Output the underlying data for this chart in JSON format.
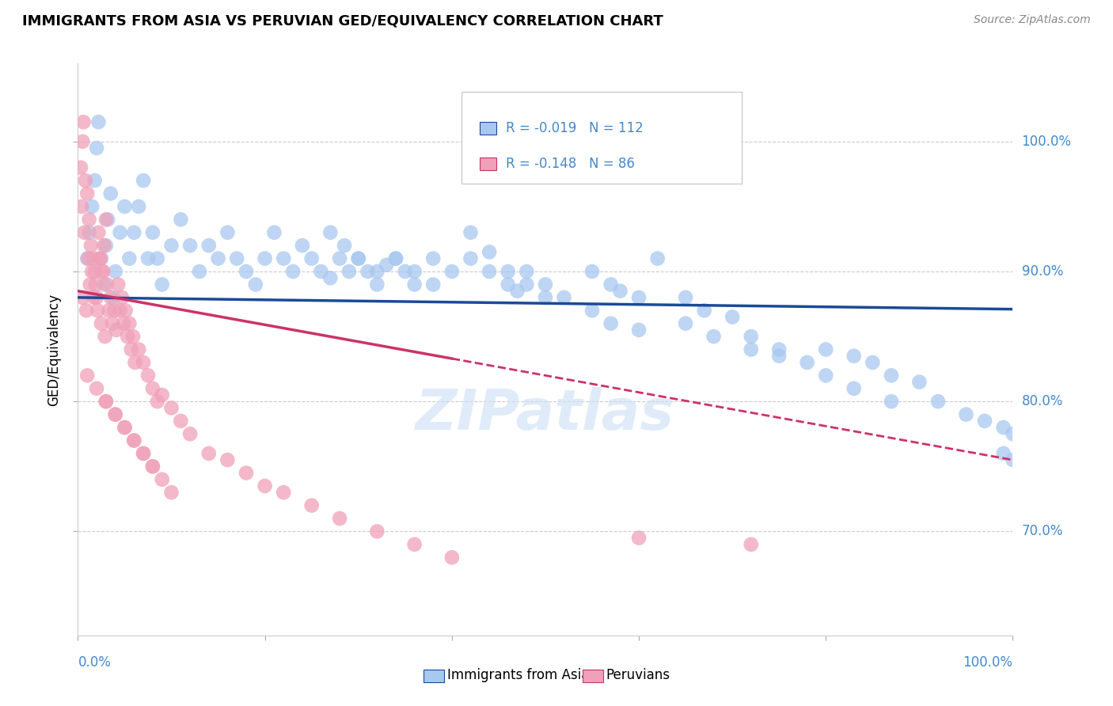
{
  "title": "IMMIGRANTS FROM ASIA VS PERUVIAN GED/EQUIVALENCY CORRELATION CHART",
  "source": "Source: ZipAtlas.com",
  "ylabel": "GED/Equivalency",
  "ylabel_ticks": [
    70.0,
    80.0,
    90.0,
    100.0
  ],
  "xlim": [
    0.0,
    100.0
  ],
  "ylim": [
    62.0,
    106.0
  ],
  "legend_label_blue": "Immigrants from Asia",
  "legend_label_pink": "Peruvians",
  "R_blue": -0.019,
  "N_blue": 112,
  "R_pink": -0.148,
  "N_pink": 86,
  "color_blue": "#a8c8f0",
  "color_pink": "#f0a0b8",
  "color_blue_line": "#1a4a99",
  "color_pink_line": "#cc3366",
  "color_text": "#4488cc",
  "watermark": "ZIPatlas",
  "blue_trend_x0": 0.0,
  "blue_trend_y0": 88.0,
  "blue_trend_x1": 100.0,
  "blue_trend_y1": 87.1,
  "pink_trend_x0": 0.0,
  "pink_trend_y0": 88.5,
  "pink_trend_x1": 100.0,
  "pink_trend_y1": 75.5,
  "pink_solid_max_x": 40.0,
  "blue_x": [
    1.0,
    1.2,
    1.5,
    1.8,
    2.0,
    2.2,
    2.5,
    2.8,
    3.0,
    3.2,
    3.5,
    3.8,
    4.0,
    4.5,
    5.0,
    5.5,
    6.0,
    6.5,
    7.0,
    7.5,
    8.0,
    8.5,
    9.0,
    10.0,
    11.0,
    12.0,
    13.0,
    14.0,
    15.0,
    16.0,
    17.0,
    18.0,
    19.0,
    20.0,
    21.0,
    22.0,
    23.0,
    24.0,
    25.0,
    26.0,
    27.0,
    28.0,
    29.0,
    30.0,
    31.0,
    32.0,
    33.0,
    34.0,
    35.0,
    36.0,
    38.0,
    40.0,
    27.0,
    28.5,
    30.0,
    32.0,
    34.0,
    36.0,
    38.0,
    42.0,
    44.0,
    46.0,
    47.0,
    48.0,
    50.0,
    52.0,
    42.0,
    44.0,
    46.0,
    48.0,
    50.0,
    55.0,
    57.0,
    58.0,
    60.0,
    62.0,
    55.0,
    57.0,
    60.0,
    65.0,
    67.0,
    70.0,
    72.0,
    75.0,
    78.0,
    65.0,
    68.0,
    72.0,
    75.0,
    80.0,
    83.0,
    85.0,
    87.0,
    90.0,
    80.0,
    83.0,
    87.0,
    92.0,
    95.0,
    97.0,
    99.0,
    100.0,
    99.0,
    100.0
  ],
  "blue_y": [
    91.0,
    93.0,
    95.0,
    97.0,
    99.5,
    101.5,
    91.0,
    89.0,
    92.0,
    94.0,
    96.0,
    88.0,
    90.0,
    93.0,
    95.0,
    91.0,
    93.0,
    95.0,
    97.0,
    91.0,
    93.0,
    91.0,
    89.0,
    92.0,
    94.0,
    92.0,
    90.0,
    92.0,
    91.0,
    93.0,
    91.0,
    90.0,
    89.0,
    91.0,
    93.0,
    91.0,
    90.0,
    92.0,
    91.0,
    90.0,
    89.5,
    91.0,
    90.0,
    91.0,
    90.0,
    89.0,
    90.5,
    91.0,
    90.0,
    89.0,
    91.0,
    90.0,
    93.0,
    92.0,
    91.0,
    90.0,
    91.0,
    90.0,
    89.0,
    91.0,
    90.0,
    89.0,
    88.5,
    90.0,
    89.0,
    88.0,
    93.0,
    91.5,
    90.0,
    89.0,
    88.0,
    90.0,
    89.0,
    88.5,
    88.0,
    91.0,
    87.0,
    86.0,
    85.5,
    88.0,
    87.0,
    86.5,
    85.0,
    84.0,
    83.0,
    86.0,
    85.0,
    84.0,
    83.5,
    84.0,
    83.5,
    83.0,
    82.0,
    81.5,
    82.0,
    81.0,
    80.0,
    80.0,
    79.0,
    78.5,
    78.0,
    77.5,
    76.0,
    75.5
  ],
  "pink_x": [
    0.3,
    0.5,
    0.6,
    0.8,
    1.0,
    1.2,
    1.4,
    1.6,
    1.8,
    2.0,
    2.2,
    2.4,
    2.6,
    2.8,
    3.0,
    0.4,
    0.7,
    1.1,
    1.5,
    1.9,
    2.3,
    2.7,
    3.1,
    3.5,
    3.9,
    4.3,
    4.7,
    5.1,
    5.5,
    5.9,
    0.5,
    0.9,
    1.3,
    1.7,
    2.1,
    2.5,
    2.9,
    3.3,
    3.7,
    4.1,
    4.5,
    4.9,
    5.3,
    5.7,
    6.1,
    6.5,
    7.0,
    7.5,
    8.0,
    8.5,
    9.0,
    10.0,
    11.0,
    12.0,
    14.0,
    16.0,
    18.0,
    20.0,
    1.0,
    2.0,
    3.0,
    4.0,
    5.0,
    6.0,
    7.0,
    8.0,
    22.0,
    25.0,
    28.0,
    32.0,
    36.0,
    40.0,
    3.0,
    4.0,
    5.0,
    6.0,
    7.0,
    8.0,
    9.0,
    10.0,
    60.0,
    72.0
  ],
  "pink_y": [
    98.0,
    100.0,
    101.5,
    97.0,
    96.0,
    94.0,
    92.0,
    91.0,
    90.0,
    88.0,
    93.0,
    91.0,
    90.0,
    92.0,
    94.0,
    95.0,
    93.0,
    91.0,
    90.0,
    89.0,
    91.0,
    90.0,
    89.0,
    88.0,
    87.0,
    89.0,
    88.0,
    87.0,
    86.0,
    85.0,
    88.0,
    87.0,
    89.0,
    88.0,
    87.0,
    86.0,
    85.0,
    87.0,
    86.0,
    85.5,
    87.0,
    86.0,
    85.0,
    84.0,
    83.0,
    84.0,
    83.0,
    82.0,
    81.0,
    80.0,
    80.5,
    79.5,
    78.5,
    77.5,
    76.0,
    75.5,
    74.5,
    73.5,
    82.0,
    81.0,
    80.0,
    79.0,
    78.0,
    77.0,
    76.0,
    75.0,
    73.0,
    72.0,
    71.0,
    70.0,
    69.0,
    68.0,
    80.0,
    79.0,
    78.0,
    77.0,
    76.0,
    75.0,
    74.0,
    73.0,
    69.5,
    69.0
  ]
}
